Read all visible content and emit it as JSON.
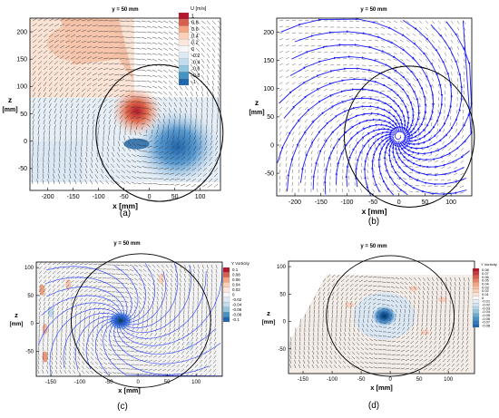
{
  "figure": {
    "panels": [
      {
        "id": "a",
        "caption": "(a)",
        "title": "y = 50 mm",
        "xlabel": "x [mm]",
        "ylabel": "z\n[mm]",
        "xticks": [
          -200,
          -150,
          -100,
          -50,
          0,
          50,
          100
        ],
        "yticks": [
          -50,
          0,
          50,
          100,
          150,
          200
        ],
        "legend_title": "U [m/s]",
        "legend_labels": [
          "1",
          "0.8",
          "0.6",
          "0.4",
          "0.2",
          "0",
          "-0.2",
          "-0.4",
          "-0.6",
          "-0.8",
          "-1"
        ]
      },
      {
        "id": "b",
        "caption": "(b)",
        "title": "y = 50 mm",
        "xlabel": "x [mm]",
        "ylabel": "z\n[mm]",
        "xticks": [
          -200,
          -150,
          -100,
          -50,
          0,
          50,
          100
        ],
        "yticks": [
          -50,
          0,
          50,
          100,
          150,
          200
        ]
      },
      {
        "id": "c",
        "caption": "(c)",
        "title": "y = 50 mm",
        "xlabel": "x [mm]",
        "ylabel": "z\n[mm]",
        "xticks": [
          -150,
          -100,
          -50,
          0,
          50,
          100
        ],
        "yticks": [
          -50,
          0,
          50,
          100
        ],
        "legend_title": "Y Vorticity",
        "legend_labels": [
          "0.1",
          "0.08",
          "0.06",
          "0.04",
          "0.02",
          "0",
          "-0.02",
          "-0.04",
          "-0.06",
          "-0.08",
          "-0.1"
        ]
      },
      {
        "id": "d",
        "caption": "(d)",
        "title": "y = 50 mm",
        "xlabel": "x [mm]",
        "ylabel": "z\n[mm]",
        "xticks": [
          -150,
          -100,
          -50,
          0,
          50,
          100
        ],
        "yticks": [
          -50,
          0,
          50,
          100
        ],
        "legend_title": "Y Vorticity",
        "legend_labels": [
          "0.08",
          "0.07",
          "0.06",
          "0.05",
          "0.04",
          "0.03",
          "0.02",
          "0.01",
          "0",
          "-0.01",
          "-0.02",
          "-0.03",
          "-0.04",
          "-0.05",
          "-0.06",
          "-0.07",
          "-0.08"
        ]
      }
    ]
  },
  "chart_data": [
    {
      "type": "heatmap",
      "title": "y = 50 mm",
      "xlabel": "x [mm]",
      "ylabel": "z [mm]",
      "xlim": [
        -235,
        140
      ],
      "ylim": [
        -90,
        225
      ],
      "colorbar": {
        "label": "U [m/s]",
        "range": [
          -1,
          1
        ]
      },
      "overlay": "velocity vectors",
      "circle": {
        "center": [
          20,
          15
        ],
        "radius": 125
      },
      "features": [
        {
          "name": "positive U lobe",
          "x": -30,
          "z": 45,
          "value": 1
        },
        {
          "name": "negative U lobe",
          "x": 40,
          "z": -10,
          "value": -0.8
        }
      ]
    },
    {
      "type": "line",
      "title": "y = 50 mm",
      "xlabel": "x [mm]",
      "ylabel": "z [mm]",
      "xlim": [
        -235,
        140
      ],
      "ylim": [
        -90,
        225
      ],
      "description": "streamlines spiralling into vortex core",
      "vortex_center": [
        0,
        15
      ],
      "circle": {
        "center": [
          20,
          15
        ],
        "radius": 125
      }
    },
    {
      "type": "heatmap",
      "title": "y = 50 mm",
      "xlabel": "x [mm]",
      "ylabel": "z [mm]",
      "xlim": [
        -175,
        145
      ],
      "ylim": [
        -95,
        110
      ],
      "colorbar": {
        "label": "Y Vorticity",
        "range": [
          -0.1,
          0.1
        ]
      },
      "overlay": "streamlines and vectors",
      "vortex_center": [
        -30,
        5
      ],
      "circle": {
        "center": [
          5,
          5
        ],
        "radius": 120
      }
    },
    {
      "type": "heatmap",
      "title": "y = 50 mm",
      "xlabel": "x [mm]",
      "ylabel": "z [mm]",
      "xlim": [
        -175,
        145
      ],
      "ylim": [
        -95,
        110
      ],
      "colorbar": {
        "label": "Y Vorticity",
        "range": [
          -0.08,
          0.08
        ]
      },
      "overlay": "velocity vectors",
      "vortex_center": [
        -10,
        10
      ],
      "circle": {
        "center": [
          0,
          10
        ],
        "radius": 110
      }
    }
  ]
}
